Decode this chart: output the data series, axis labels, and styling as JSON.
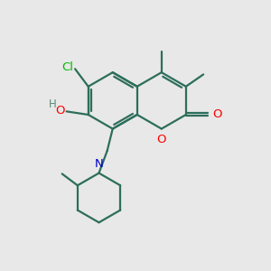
{
  "bg_color": "#e8e8e8",
  "bond_color": "#2d6e5a",
  "bond_width": 1.6,
  "atom_colors": {
    "O": "#ff0000",
    "N": "#0000cc",
    "Cl": "#00bb00",
    "H": "#5a8a7a"
  },
  "font_size": 9.5,
  "figsize": [
    3.0,
    3.0
  ],
  "dpi": 100
}
